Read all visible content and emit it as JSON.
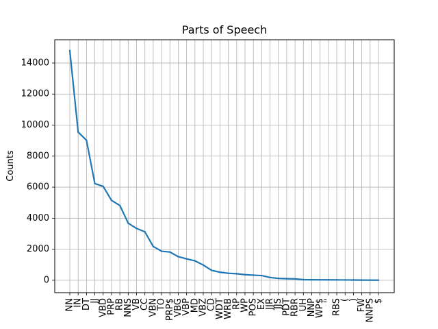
{
  "chart_data": {
    "type": "line",
    "title": "Parts of Speech",
    "xlabel": "",
    "ylabel": "Counts",
    "grid": true,
    "ylim": [
      -800,
      15500
    ],
    "yticks": [
      0,
      2000,
      4000,
      6000,
      8000,
      10000,
      12000,
      14000
    ],
    "ytick_labels": [
      "0",
      "2000",
      "4000",
      "6000",
      "8000",
      "10000",
      "12000",
      "14000"
    ],
    "categories": [
      "NN",
      "IN",
      "DT",
      "JJ",
      "VBD",
      "PRP",
      "RB",
      "NNS",
      "VB",
      "CC",
      "VBN",
      "TO",
      "PRP$",
      "VBG",
      "VBP",
      "MD",
      "VBZ",
      "CD",
      "WDT",
      "WRB",
      "RP",
      "WP",
      "POS",
      "EX",
      "JJR",
      "JJS",
      "PDT",
      "RBR",
      "UH",
      "NNP",
      "WP$",
      "''",
      "RBS",
      "(",
      ")",
      "FW",
      "NNPS",
      "$"
    ],
    "series": [
      {
        "values": [
          14800,
          9550,
          9020,
          6230,
          6050,
          5150,
          4820,
          3680,
          3340,
          3120,
          2180,
          1870,
          1820,
          1520,
          1380,
          1250,
          980,
          640,
          520,
          450,
          420,
          360,
          330,
          300,
          180,
          120,
          100,
          90,
          40,
          35,
          30,
          28,
          25,
          20,
          18,
          12,
          8,
          5
        ],
        "color": "#1f77b4"
      }
    ]
  }
}
